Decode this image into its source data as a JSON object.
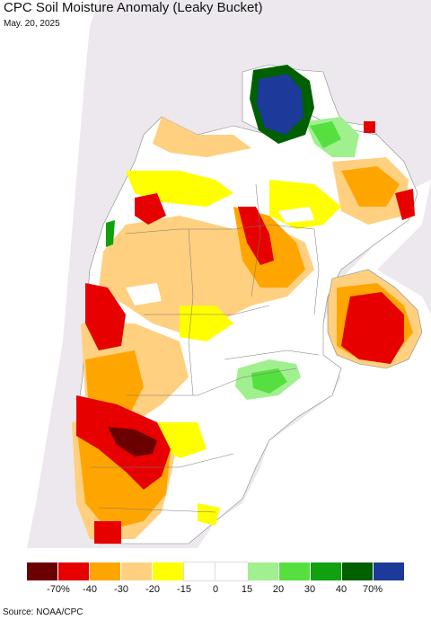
{
  "header": {
    "title": "CPC Soil Moisture Anomaly (Leaky Bucket)",
    "date": "May. 20, 2025"
  },
  "legend": {
    "colors": [
      "#6b0000",
      "#e60000",
      "#ffa500",
      "#ffd080",
      "#ffff00",
      "#ffffff",
      "#ffffff",
      "#a0f090",
      "#55e040",
      "#10a010",
      "#006000",
      "#1c3a99"
    ],
    "labels": [
      "-70%",
      "-40",
      "-30",
      "-20",
      "-15",
      "0",
      "15",
      "20",
      "30",
      "40",
      "70%"
    ]
  },
  "map": {
    "ocean_color": "#ffffff",
    "land_color": "#ffffff",
    "outside_region_color": "#ece8ee"
  },
  "footer": {
    "source": "Source: NOAA/CPC"
  }
}
